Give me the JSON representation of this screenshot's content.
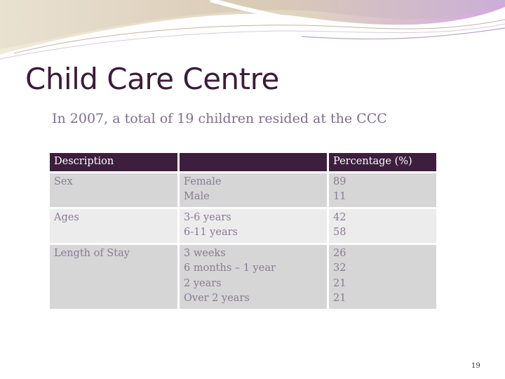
{
  "slide": {
    "title": "Child Care Centre",
    "subtitle": "In 2007, a total of 19 children resided at the CCC",
    "page_number": "19"
  },
  "table": {
    "headers": [
      "Description",
      "",
      "Percentage (%)"
    ],
    "rows": [
      {
        "description": "Sex",
        "categories": [
          "Female",
          "Male"
        ],
        "percentages": [
          "89",
          "11"
        ]
      },
      {
        "description": "Ages",
        "categories": [
          "3-6 years",
          "6-11 years"
        ],
        "percentages": [
          "42",
          "58"
        ]
      },
      {
        "description": "Length of Stay",
        "categories": [
          "3 weeks",
          "6 months – 1 year",
          "2 years",
          "Over 2 years"
        ],
        "percentages": [
          "26",
          "32",
          "21",
          "21"
        ]
      }
    ]
  },
  "colors": {
    "header_bg": "#3d1e3d",
    "title_text": "#3a1d3a",
    "body_text": "#8a7a94",
    "row_dark": "#d6d6d6",
    "row_light": "#ececec"
  }
}
